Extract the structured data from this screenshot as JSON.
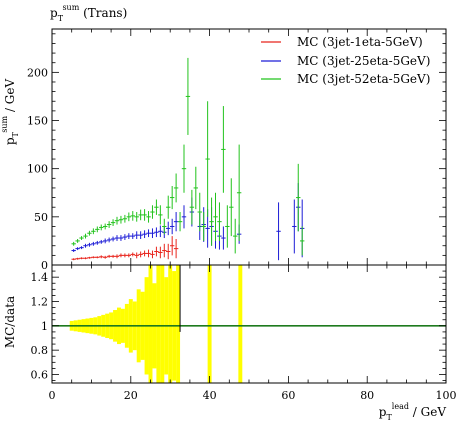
{
  "chart_data": [
    {
      "type": "scatter",
      "panel": "main",
      "title": "p_T^sum (Trans)",
      "title_main": "p",
      "title_sub": "T",
      "title_sup": "sum",
      "title_rest": " (Trans)",
      "ylabel": "p_T^sum / GeV",
      "ylabel_main": "p",
      "ylabel_sub": "T",
      "ylabel_sup": "sum",
      "ylabel_unit": " / GeV",
      "xlim": [
        0,
        100
      ],
      "ylim": [
        0,
        245
      ],
      "yticks": [
        0,
        50,
        100,
        150,
        200
      ],
      "legend_position": "top-right",
      "series": [
        {
          "name": "MC (3jet-1eta-5GeV)",
          "color": "#e8241c",
          "x": [
            5.5,
            6.5,
            7.5,
            8.5,
            9.5,
            10.5,
            11.5,
            12.5,
            13.5,
            14.5,
            15.5,
            16.5,
            17.5,
            18.5,
            19.5,
            20.5,
            21.5,
            22.5,
            23.5,
            24.5,
            25.5,
            26.5,
            27.5,
            28.5,
            29.5,
            30.5,
            31.5
          ],
          "y": [
            6,
            6.5,
            7,
            7,
            7.5,
            8,
            8,
            8.5,
            8,
            9,
            9,
            9,
            10,
            10,
            10,
            11,
            10,
            11,
            12,
            12,
            11,
            14,
            13,
            15,
            14,
            20,
            17
          ],
          "yerr": [
            1,
            1,
            1,
            1,
            1,
            1,
            1,
            1.5,
            1.5,
            1.5,
            1.5,
            2,
            2,
            2,
            2,
            2,
            3,
            3,
            3,
            4,
            4,
            5,
            6,
            7,
            8,
            10,
            10
          ]
        },
        {
          "name": "MC (3jet-25eta-5GeV)",
          "color": "#1c1cd6",
          "x": [
            5.5,
            6.5,
            7.5,
            8.5,
            9.5,
            10.5,
            11.5,
            12.5,
            13.5,
            14.5,
            15.5,
            16.5,
            17.5,
            18.5,
            19.5,
            20.5,
            21.5,
            22.5,
            23.5,
            24.5,
            25.5,
            26.5,
            27.5,
            28.5,
            29.5,
            30.5,
            31.5,
            33.5,
            35.5,
            37.5,
            38.5,
            39.5,
            40.5,
            41.5,
            42.5,
            43.5,
            47.5,
            57.5,
            61.5,
            62.5,
            63.5
          ],
          "y": [
            15,
            17,
            18,
            20,
            21,
            22,
            23,
            24,
            25,
            26,
            27,
            28,
            28,
            29,
            30,
            30,
            31,
            31,
            32,
            33,
            33,
            34,
            35,
            34,
            38,
            40,
            45,
            50,
            55,
            40,
            42,
            38,
            40,
            35,
            30,
            28,
            32,
            35,
            40,
            60,
            38
          ],
          "yerr": [
            1.5,
            1.5,
            1.5,
            2,
            2,
            2,
            2,
            2,
            2.5,
            2.5,
            2.5,
            3,
            3,
            3,
            3,
            3,
            4,
            4,
            4,
            4,
            5,
            5,
            6,
            6,
            7,
            8,
            10,
            12,
            15,
            14,
            18,
            20,
            20,
            18,
            14,
            12,
            10,
            30,
            28,
            25,
            30
          ]
        },
        {
          "name": "MC (3jet-52eta-5GeV)",
          "color": "#22c31c",
          "x": [
            5.5,
            6.5,
            7.5,
            8.5,
            9.5,
            10.5,
            11.5,
            12.5,
            13.5,
            14.5,
            15.5,
            16.5,
            17.5,
            18.5,
            19.5,
            20.5,
            21.5,
            22.5,
            23.5,
            24.5,
            25.5,
            26.5,
            27.5,
            28.5,
            29.5,
            30.5,
            31.5,
            32.5,
            33.5,
            34.5,
            35.5,
            36.5,
            37.5,
            38.5,
            39.5,
            40.5,
            41.5,
            42.5,
            43.5,
            44.5,
            45.5,
            46.5,
            47.5,
            62.5,
            63.5
          ],
          "y": [
            22,
            25,
            28,
            30,
            33,
            35,
            37,
            39,
            40,
            42,
            44,
            46,
            47,
            48,
            50,
            51,
            50,
            52,
            52,
            50,
            55,
            60,
            52,
            40,
            60,
            70,
            80,
            45,
            100,
            175,
            60,
            80,
            55,
            40,
            110,
            45,
            50,
            45,
            120,
            40,
            60,
            30,
            75,
            70,
            25
          ],
          "yerr": [
            2,
            2,
            2,
            2.5,
            2.5,
            3,
            3,
            3,
            3,
            3.5,
            3.5,
            4,
            4,
            4,
            4.5,
            5,
            5,
            5.5,
            6,
            6,
            7,
            8,
            10,
            8,
            12,
            12,
            15,
            10,
            25,
            40,
            18,
            22,
            20,
            15,
            60,
            25,
            25,
            20,
            45,
            22,
            30,
            18,
            50,
            35,
            15
          ]
        }
      ]
    },
    {
      "type": "area",
      "panel": "ratio",
      "ylabel": "MC/data",
      "xlabel": "p_T^lead / GeV",
      "xlabel_main": "p",
      "xlabel_sub": "T",
      "xlabel_sup": "lead",
      "xlabel_unit": " / GeV",
      "xlim": [
        0,
        100
      ],
      "ylim": [
        0.53,
        1.5
      ],
      "xticks": [
        0,
        20,
        40,
        60,
        80,
        100
      ],
      "yticks": [
        0.6,
        0.8,
        1,
        1.2,
        1.4
      ],
      "band_color": "#ffff00",
      "line_color": "#1e7a1e",
      "reference": 1,
      "band": {
        "x": [
          5,
          6,
          7,
          8,
          9,
          10,
          11,
          12,
          13,
          14,
          15,
          16,
          17,
          18,
          19,
          20,
          21,
          22,
          23,
          24,
          25,
          26,
          27,
          28,
          29,
          30,
          31,
          32
        ],
        "half_width": [
          0.04,
          0.045,
          0.05,
          0.055,
          0.06,
          0.065,
          0.07,
          0.08,
          0.09,
          0.1,
          0.11,
          0.13,
          0.15,
          0.14,
          0.18,
          0.22,
          0.2,
          0.3,
          0.28,
          0.4,
          0.8,
          0.35,
          0.8,
          0.5,
          0.4,
          0.8,
          0.45,
          0.8
        ]
      },
      "spikes": [
        {
          "x1": 39.5,
          "x2": 40.5
        },
        {
          "x1": 47.3,
          "x2": 48.3
        }
      ],
      "vline_x": 32.5
    }
  ]
}
